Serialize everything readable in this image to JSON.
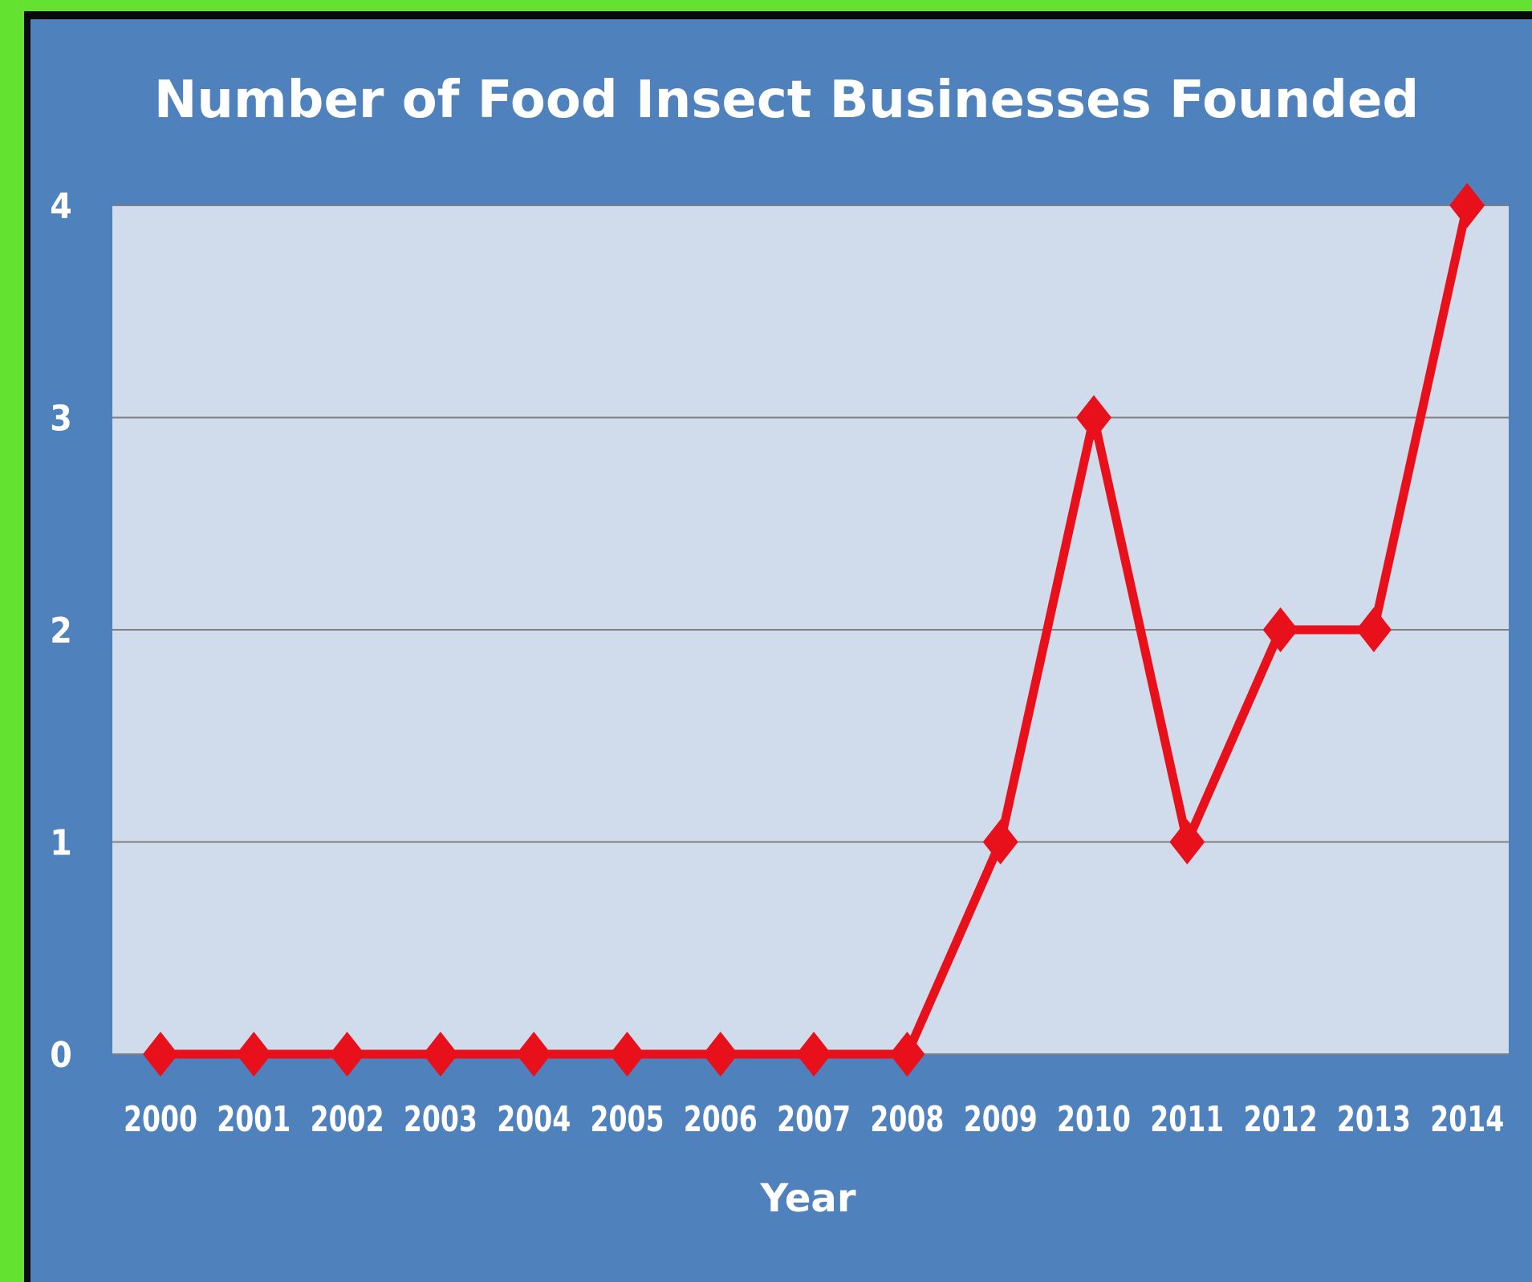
{
  "chart_data": {
    "type": "line",
    "title": "Number of Food Insect Businesses Founded",
    "xlabel": "Year",
    "ylabel": "",
    "x": [
      "2000",
      "2001",
      "2002",
      "2003",
      "2004",
      "2005",
      "2006",
      "2007",
      "2008",
      "2009",
      "2010",
      "2011",
      "2012",
      "2013",
      "2014"
    ],
    "series": [
      {
        "values": [
          0,
          0,
          0,
          0,
          0,
          0,
          0,
          0,
          0,
          1,
          3,
          1,
          2,
          2,
          4
        ],
        "color": "#e8101a",
        "marker": "diamond"
      }
    ],
    "ylim": [
      0,
      4
    ],
    "yticks": [
      0,
      1,
      2,
      3,
      4
    ],
    "grid": true,
    "legend": "none",
    "colors": {
      "background": "#4f81bd",
      "plot_area": "#d0dbec",
      "gridline": "#808080",
      "outer_border": "#63e22f"
    }
  }
}
